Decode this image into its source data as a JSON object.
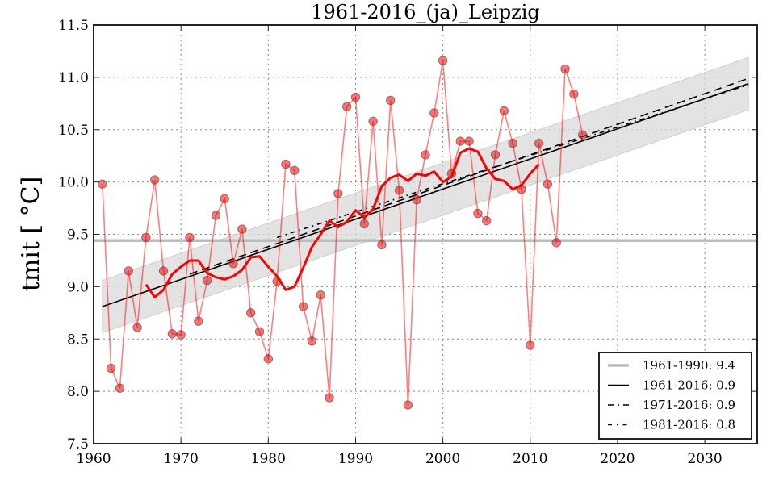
{
  "chart_data": {
    "type": "line",
    "title": "1961-2016_(ja)_Leipzig",
    "xlabel": "",
    "ylabel": "tmit [ °C]",
    "xlim": [
      1960,
      2036
    ],
    "ylim": [
      7.5,
      11.5
    ],
    "grid": true,
    "xticks": [
      1960,
      1970,
      1980,
      1990,
      2000,
      2010,
      2020,
      2030
    ],
    "xtick_labels": [
      "1960",
      "1970",
      "1980",
      "1990",
      "2000",
      "2010",
      "2020",
      "2030"
    ],
    "yticks": [
      7.5,
      8.0,
      8.5,
      9.0,
      9.5,
      10.0,
      10.5,
      11.0,
      11.5
    ],
    "ytick_labels": [
      "7.5",
      "8.0",
      "8.5",
      "9.0",
      "9.5",
      "10.0",
      "10.5",
      "11.0",
      "11.5"
    ],
    "legend_position": "bottom-right",
    "colors": {
      "annual": "#ff0000",
      "smoothed": "#ff0000",
      "reference": "#bbbbbb",
      "trend": "#000000",
      "band": "#d9d9d9"
    },
    "series": [
      {
        "name": "annual",
        "x": [
          1961,
          1962,
          1963,
          1964,
          1965,
          1966,
          1967,
          1968,
          1969,
          1970,
          1971,
          1972,
          1973,
          1974,
          1975,
          1976,
          1977,
          1978,
          1979,
          1980,
          1981,
          1982,
          1983,
          1984,
          1985,
          1986,
          1987,
          1988,
          1989,
          1990,
          1991,
          1992,
          1993,
          1994,
          1995,
          1996,
          1997,
          1998,
          1999,
          2000,
          2001,
          2002,
          2003,
          2004,
          2005,
          2006,
          2007,
          2008,
          2009,
          2010,
          2011,
          2012,
          2013,
          2014,
          2015,
          2016
        ],
        "values": [
          9.98,
          8.22,
          8.03,
          9.15,
          8.61,
          9.47,
          10.02,
          9.15,
          8.55,
          8.54,
          9.47,
          8.67,
          9.06,
          9.68,
          9.84,
          9.22,
          9.55,
          8.75,
          8.57,
          8.31,
          9.05,
          10.17,
          10.11,
          8.81,
          8.48,
          8.92,
          7.94,
          9.89,
          10.72,
          10.81,
          9.6,
          10.58,
          9.4,
          10.78,
          9.92,
          7.87,
          9.83,
          10.26,
          10.66,
          11.16,
          10.08,
          10.39,
          10.39,
          9.7,
          9.63,
          10.26,
          10.68,
          10.37,
          9.93,
          8.44,
          10.37,
          9.98,
          9.42,
          11.08,
          10.84,
          10.45
        ]
      },
      {
        "name": "running_mean",
        "x": [
          1966,
          1967,
          1968,
          1969,
          1970,
          1971,
          1972,
          1973,
          1974,
          1975,
          1976,
          1977,
          1978,
          1979,
          1980,
          1981,
          1982,
          1983,
          1984,
          1985,
          1986,
          1987,
          1988,
          1989,
          1990,
          1991,
          1992,
          1993,
          1994,
          1995,
          1996,
          1997,
          1998,
          1999,
          2000,
          2001,
          2002,
          2003,
          2004,
          2005,
          2006,
          2007,
          2008,
          2009,
          2010,
          2011
        ],
        "values": [
          9.02,
          8.9,
          8.97,
          9.12,
          9.19,
          9.25,
          9.25,
          9.13,
          9.09,
          9.07,
          9.1,
          9.16,
          9.28,
          9.29,
          9.19,
          9.1,
          8.97,
          9.0,
          9.18,
          9.38,
          9.5,
          9.63,
          9.57,
          9.62,
          9.73,
          9.66,
          9.74,
          9.96,
          10.04,
          10.07,
          10.01,
          10.08,
          10.06,
          10.1,
          10.0,
          10.05,
          10.28,
          10.32,
          10.29,
          10.13,
          10.03,
          10.01,
          9.93,
          9.97,
          10.08,
          10.17
        ]
      },
      {
        "name": "1961-1990: 9.4",
        "kind": "reference",
        "x": [
          1960,
          2036
        ],
        "values": [
          9.44,
          9.44
        ]
      },
      {
        "name": "1961-2016: 0.9",
        "kind": "trend",
        "dash": "solid",
        "x": [
          1961,
          2035
        ],
        "values": [
          8.81,
          10.94
        ]
      },
      {
        "name": "1971-2016: 0.9",
        "kind": "trend",
        "dash": "dashed",
        "x": [
          1971,
          2035
        ],
        "values": [
          9.12,
          10.99
        ]
      },
      {
        "name": "1981-2016: 0.8",
        "kind": "trend",
        "dash": "dashdot",
        "x": [
          1981,
          2035
        ],
        "values": [
          9.47,
          10.93
        ]
      },
      {
        "name": "confidence_band",
        "kind": "band",
        "x": [
          1961,
          2035
        ],
        "upper": [
          9.06,
          11.19
        ],
        "lower": [
          8.56,
          10.69
        ]
      }
    ],
    "legend": [
      {
        "label": "1961-1990: 9.4",
        "style": "reference"
      },
      {
        "label": "1961-2016: 0.9",
        "style": "solid"
      },
      {
        "label": "1971-2016: 0.9",
        "style": "dashed"
      },
      {
        "label": "1981-2016: 0.8",
        "style": "dashdot"
      }
    ]
  }
}
